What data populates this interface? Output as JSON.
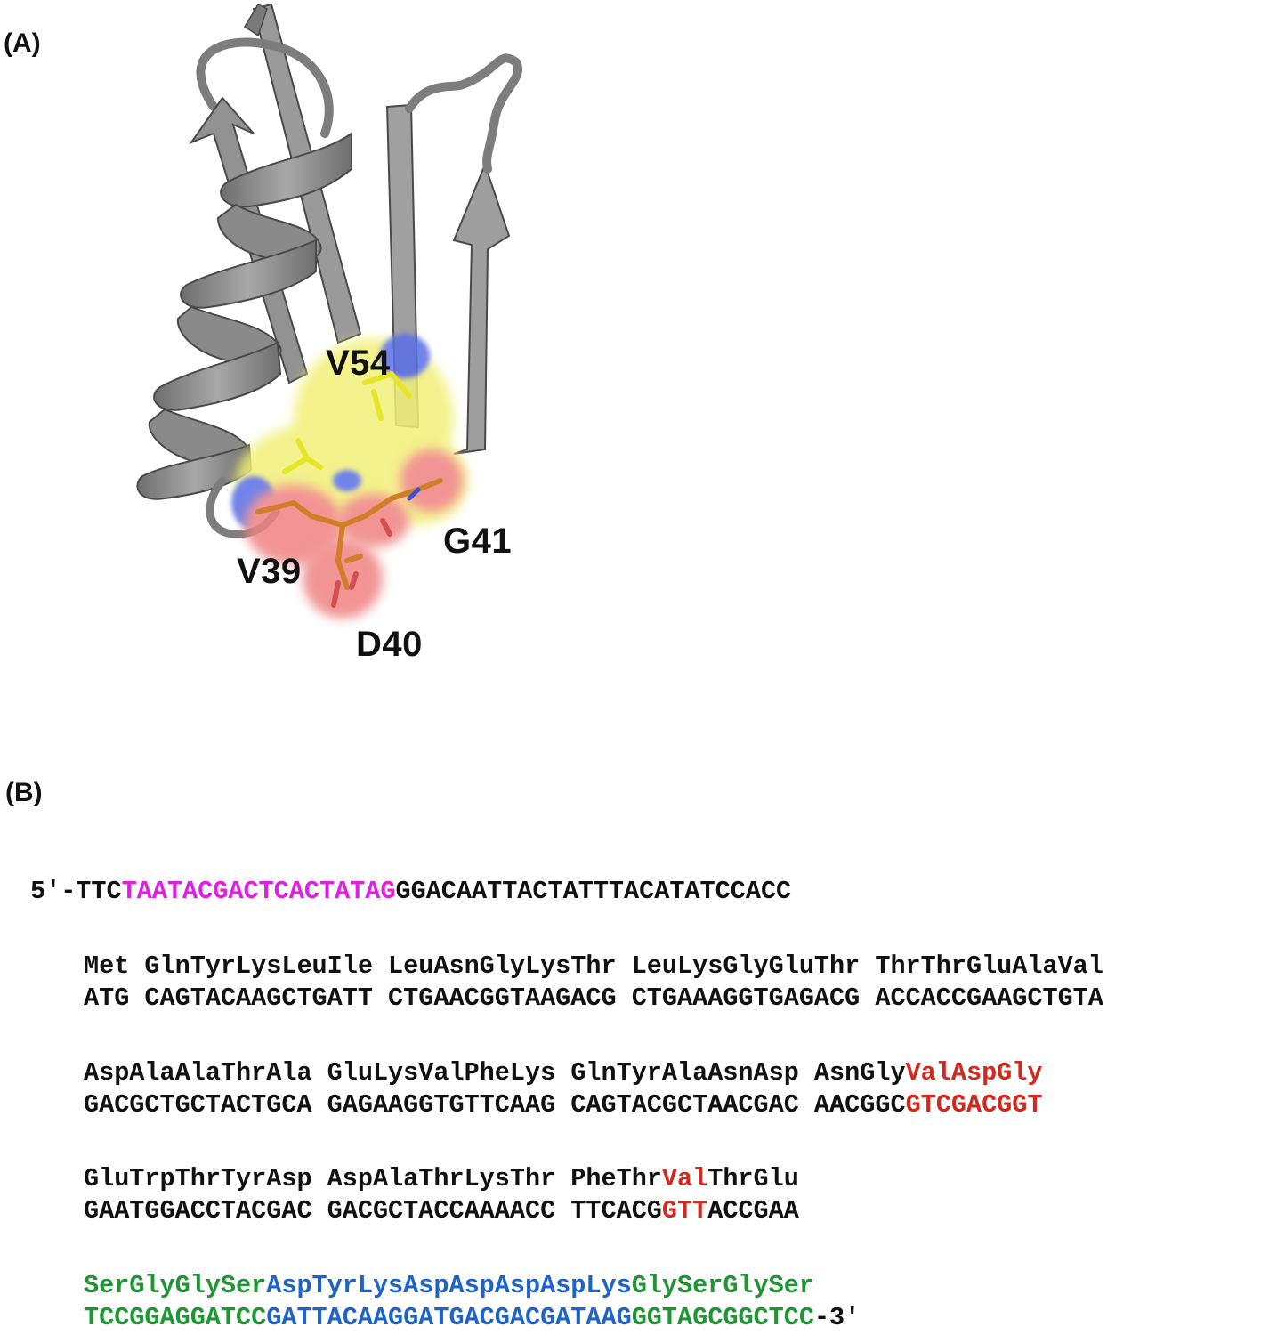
{
  "panels": {
    "a_label": "(A)",
    "b_label": "(B)"
  },
  "structure": {
    "residues": {
      "v54": "V54",
      "g41": "G41",
      "v39": "V39",
      "d40": "D40"
    },
    "colors": {
      "ribbon": "#8c8c8c",
      "ribbon_dark": "#5a5a5a",
      "surface_yellow": "#f2f078",
      "surface_red": "#f08282",
      "surface_blue": "#5a6ee6",
      "stick_orange": "#d27d28",
      "stick_yellow": "#e6e628"
    }
  },
  "sequence": {
    "colors": {
      "promoter": "#e11ee6",
      "mutation": "#d2281e",
      "linker": "#1e9632",
      "flag": "#1e64c8"
    },
    "leader": {
      "prefix": "5'-TTC",
      "promoter": "TAATACGACTCACTATAG",
      "suffix": "GGACAATTACTATTTACATATCCACC"
    },
    "block1": {
      "aa": "Met GlnTyrLysLeuIle LeuAsnGlyLysThr LeuLysGlyGluThr ThrThrGluAlaVal",
      "nt": "ATG CAGTACAAGCTGATT CTGAACGGTAAGACG CTGAAAGGTGAGACG ACCACCGAAGCTGTA"
    },
    "block2": {
      "aa_plain": "AspAlaAlaThrAla GluLysValPheLys GlnTyrAlaAsnAsp AsnGly",
      "aa_mut": "ValAspGly",
      "nt_plain": "GACGCTGCTACTGCA GAGAAGGTGTTCAAG CAGTACGCTAACGAC AACGGC",
      "nt_mut": "GTCGACGGT"
    },
    "block3": {
      "aa_pre": "GluTrpThrTyrAsp AspAlaThrLysThr PheThr",
      "aa_mut": "Val",
      "aa_post": "ThrGlu",
      "nt_pre": "GAATGGACCTACGAC GACGCTACCAAAACC TTCACG",
      "nt_mut": "GTT",
      "nt_post": "ACCGAA"
    },
    "block4": {
      "aa_linker1": "SerGlyGlySer",
      "aa_flag": "AspTyrLysAspAspAspAspLys",
      "aa_linker2": "GlySerGlySer",
      "nt_linker1": "TCCGGAGGATCC",
      "nt_flag": "GATTACAAGGATGACGACGATAAG",
      "nt_linker2": "GGTAGCGGCTCC",
      "nt_end": "-3'"
    }
  }
}
